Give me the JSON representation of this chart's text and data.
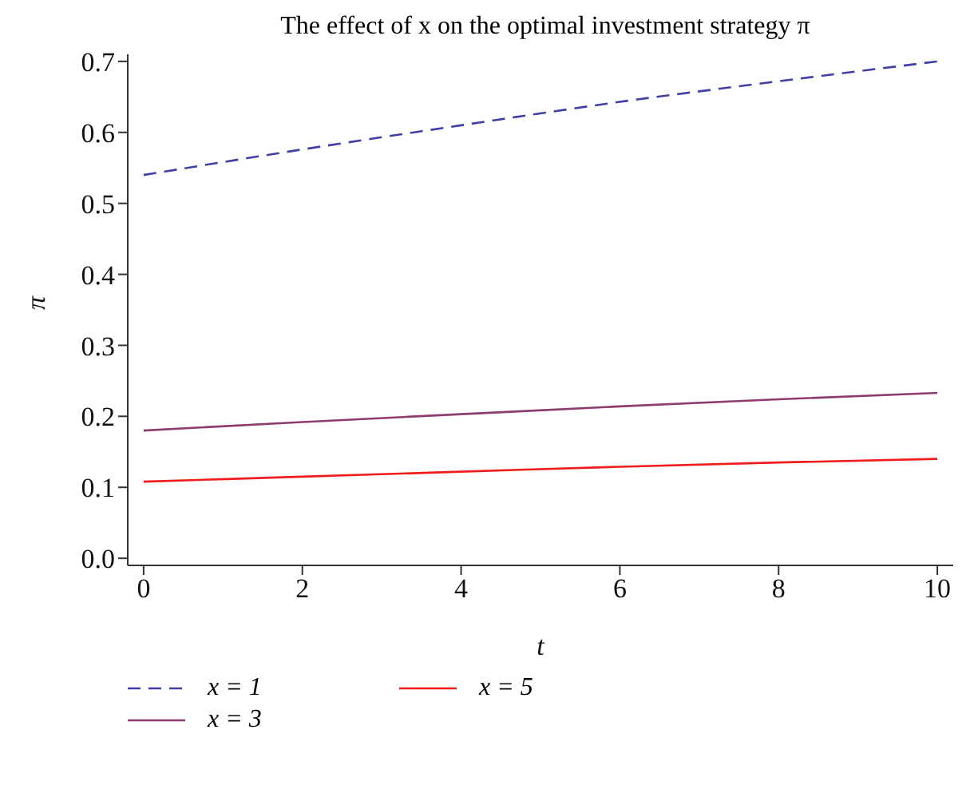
{
  "chart_data": {
    "type": "line",
    "title": "The effect of x on the optimal investment strategy π",
    "xlabel": "t",
    "ylabel": "π",
    "x": [
      0,
      2,
      4,
      6,
      8,
      10
    ],
    "series": [
      {
        "name": "x = 1",
        "color": "#3f3fa6",
        "line_style": "dashed",
        "values": [
          0.54,
          0.576,
          0.61,
          0.643,
          0.672,
          0.7
        ]
      },
      {
        "name": "x = 3",
        "color": "#8e3b6e",
        "values": [
          0.18,
          0.192,
          0.203,
          0.214,
          0.224,
          0.233
        ]
      },
      {
        "name": "x = 5",
        "color": "#f01c1c",
        "values": [
          0.108,
          0.115,
          0.122,
          0.129,
          0.135,
          0.14
        ]
      }
    ],
    "xlim": [
      -0.2,
      10.2
    ],
    "xticks": [
      0,
      2,
      4,
      6,
      8,
      10
    ],
    "ylim": [
      -0.01,
      0.71
    ],
    "yticks": [
      {
        "value": 0,
        "label": "0.0"
      },
      0.1,
      0.2,
      0.3,
      0.4,
      0.5,
      0.6,
      0.7
    ],
    "grid": false,
    "legend": "bottom",
    "marker": "none",
    "line_style": "solid"
  }
}
